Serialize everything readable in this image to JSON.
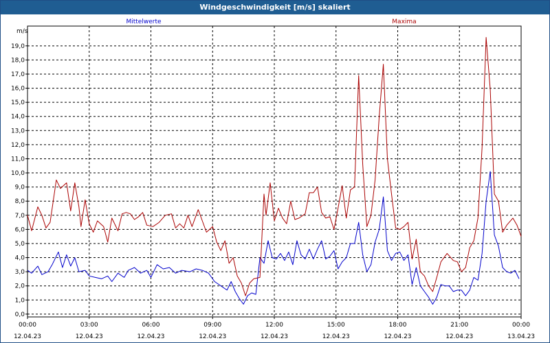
{
  "window": {
    "title": "Windgeschwindigkeit [m/s] skaliert"
  },
  "chart_data": {
    "type": "line",
    "title": "Windgeschwindigkeit [m/s] skaliert",
    "ylabel": "m/s",
    "xlabel": "",
    "ylim": [
      -0.2,
      20.4
    ],
    "xlim": [
      0,
      24
    ],
    "grid": true,
    "colors": {
      "Mittelwerte": "#0000cc",
      "Maxima": "#aa0000"
    },
    "yticks": [
      {
        "v": 0,
        "label": "0,0"
      },
      {
        "v": 1,
        "label": "1,0"
      },
      {
        "v": 2,
        "label": "2,0"
      },
      {
        "v": 3,
        "label": "3,0"
      },
      {
        "v": 4,
        "label": "4,0"
      },
      {
        "v": 5,
        "label": "5,0"
      },
      {
        "v": 6,
        "label": "6,0"
      },
      {
        "v": 7,
        "label": "7,0"
      },
      {
        "v": 8,
        "label": "8,0"
      },
      {
        "v": 9,
        "label": "9,0"
      },
      {
        "v": 10,
        "label": "10,0"
      },
      {
        "v": 11,
        "label": "11,0"
      },
      {
        "v": 12,
        "label": "12,0"
      },
      {
        "v": 13,
        "label": "13,0"
      },
      {
        "v": 14,
        "label": "14,0"
      },
      {
        "v": 15,
        "label": "15,0"
      },
      {
        "v": 16,
        "label": "16,0"
      },
      {
        "v": 17,
        "label": "17,0"
      },
      {
        "v": 18,
        "label": "18,0"
      },
      {
        "v": 19,
        "label": "19,0"
      }
    ],
    "xticks": [
      {
        "v": 0,
        "time": "00:00",
        "date": "12.04.23"
      },
      {
        "v": 3,
        "time": "03:00",
        "date": "12.04.23"
      },
      {
        "v": 6,
        "time": "06:00",
        "date": "12.04.23"
      },
      {
        "v": 9,
        "time": "09:00",
        "date": "12.04.23"
      },
      {
        "v": 12,
        "time": "12:00",
        "date": "12.04.23"
      },
      {
        "v": 15,
        "time": "15:00",
        "date": "12.04.23"
      },
      {
        "v": 18,
        "time": "18:00",
        "date": "12.04.23"
      },
      {
        "v": 21,
        "time": "21:00",
        "date": "12.04.23"
      },
      {
        "v": 24,
        "time": "00:00",
        "date": "13.04.23"
      }
    ],
    "series": [
      {
        "name": "Mittelwerte",
        "points": [
          [
            0.0,
            3.1
          ],
          [
            0.2,
            2.9
          ],
          [
            0.5,
            3.4
          ],
          [
            0.7,
            2.8
          ],
          [
            1.0,
            3.0
          ],
          [
            1.2,
            3.5
          ],
          [
            1.5,
            4.4
          ],
          [
            1.7,
            3.3
          ],
          [
            1.9,
            4.2
          ],
          [
            2.1,
            3.4
          ],
          [
            2.3,
            4.0
          ],
          [
            2.5,
            3.0
          ],
          [
            2.8,
            3.1
          ],
          [
            3.0,
            2.7
          ],
          [
            3.3,
            2.6
          ],
          [
            3.6,
            2.5
          ],
          [
            3.9,
            2.7
          ],
          [
            4.1,
            2.3
          ],
          [
            4.4,
            2.9
          ],
          [
            4.7,
            2.6
          ],
          [
            4.9,
            3.1
          ],
          [
            5.2,
            3.3
          ],
          [
            5.5,
            2.9
          ],
          [
            5.8,
            3.1
          ],
          [
            6.0,
            2.6
          ],
          [
            6.3,
            3.5
          ],
          [
            6.6,
            3.2
          ],
          [
            6.9,
            3.3
          ],
          [
            7.2,
            2.9
          ],
          [
            7.5,
            3.1
          ],
          [
            7.9,
            3.0
          ],
          [
            8.2,
            3.2
          ],
          [
            8.5,
            3.1
          ],
          [
            8.8,
            2.9
          ],
          [
            9.1,
            2.3
          ],
          [
            9.4,
            2.0
          ],
          [
            9.7,
            1.7
          ],
          [
            9.9,
            2.3
          ],
          [
            10.1,
            1.6
          ],
          [
            10.3,
            1.1
          ],
          [
            10.5,
            0.7
          ],
          [
            10.7,
            1.3
          ],
          [
            10.9,
            1.5
          ],
          [
            11.1,
            1.4
          ],
          [
            11.3,
            4.0
          ],
          [
            11.5,
            3.6
          ],
          [
            11.7,
            5.2
          ],
          [
            11.9,
            4.0
          ],
          [
            12.1,
            3.9
          ],
          [
            12.3,
            4.3
          ],
          [
            12.5,
            3.8
          ],
          [
            12.7,
            4.4
          ],
          [
            12.9,
            3.5
          ],
          [
            13.1,
            5.2
          ],
          [
            13.3,
            4.2
          ],
          [
            13.5,
            3.9
          ],
          [
            13.7,
            4.6
          ],
          [
            13.9,
            3.9
          ],
          [
            14.1,
            4.6
          ],
          [
            14.3,
            5.2
          ],
          [
            14.5,
            3.9
          ],
          [
            14.7,
            4.1
          ],
          [
            14.9,
            4.5
          ],
          [
            15.1,
            3.2
          ],
          [
            15.3,
            3.7
          ],
          [
            15.5,
            4.0
          ],
          [
            15.7,
            5.0
          ],
          [
            15.9,
            5.0
          ],
          [
            16.1,
            6.5
          ],
          [
            16.3,
            4.2
          ],
          [
            16.5,
            3.0
          ],
          [
            16.7,
            3.5
          ],
          [
            16.9,
            5.1
          ],
          [
            17.1,
            6.0
          ],
          [
            17.3,
            8.3
          ],
          [
            17.5,
            4.5
          ],
          [
            17.7,
            3.8
          ],
          [
            17.9,
            4.3
          ],
          [
            18.1,
            4.4
          ],
          [
            18.3,
            3.8
          ],
          [
            18.5,
            4.2
          ],
          [
            18.7,
            2.1
          ],
          [
            18.9,
            3.3
          ],
          [
            19.1,
            2.0
          ],
          [
            19.3,
            1.6
          ],
          [
            19.5,
            1.2
          ],
          [
            19.7,
            0.7
          ],
          [
            19.9,
            1.2
          ],
          [
            20.1,
            2.1
          ],
          [
            20.3,
            2.0
          ],
          [
            20.5,
            2.0
          ],
          [
            20.7,
            1.6
          ],
          [
            20.9,
            1.7
          ],
          [
            21.1,
            1.7
          ],
          [
            21.3,
            1.3
          ],
          [
            21.5,
            1.7
          ],
          [
            21.7,
            2.6
          ],
          [
            21.9,
            2.4
          ],
          [
            22.1,
            4.3
          ],
          [
            22.3,
            8.0
          ],
          [
            22.5,
            10.1
          ],
          [
            22.7,
            5.6
          ],
          [
            22.9,
            4.8
          ],
          [
            23.1,
            3.3
          ],
          [
            23.3,
            3.0
          ],
          [
            23.5,
            2.9
          ],
          [
            23.7,
            3.1
          ],
          [
            23.9,
            2.5
          ]
        ]
      },
      {
        "name": "Maxima",
        "points": [
          [
            0.0,
            7.0
          ],
          [
            0.2,
            5.9
          ],
          [
            0.5,
            7.6
          ],
          [
            0.7,
            7.0
          ],
          [
            0.9,
            6.1
          ],
          [
            1.1,
            6.5
          ],
          [
            1.4,
            9.5
          ],
          [
            1.6,
            8.9
          ],
          [
            1.9,
            9.3
          ],
          [
            2.1,
            7.3
          ],
          [
            2.3,
            9.3
          ],
          [
            2.5,
            7.6
          ],
          [
            2.6,
            6.2
          ],
          [
            2.8,
            8.1
          ],
          [
            3.0,
            6.4
          ],
          [
            3.2,
            5.8
          ],
          [
            3.4,
            6.6
          ],
          [
            3.7,
            6.2
          ],
          [
            3.9,
            5.1
          ],
          [
            4.1,
            6.8
          ],
          [
            4.4,
            5.9
          ],
          [
            4.6,
            7.1
          ],
          [
            4.8,
            7.2
          ],
          [
            5.0,
            7.1
          ],
          [
            5.2,
            6.7
          ],
          [
            5.4,
            6.9
          ],
          [
            5.6,
            7.2
          ],
          [
            5.8,
            6.3
          ],
          [
            6.1,
            6.2
          ],
          [
            6.4,
            6.5
          ],
          [
            6.7,
            7.0
          ],
          [
            7.0,
            7.1
          ],
          [
            7.2,
            6.1
          ],
          [
            7.4,
            6.4
          ],
          [
            7.6,
            6.1
          ],
          [
            7.8,
            7.0
          ],
          [
            8.0,
            6.2
          ],
          [
            8.3,
            7.4
          ],
          [
            8.5,
            6.6
          ],
          [
            8.7,
            5.8
          ],
          [
            9.0,
            6.2
          ],
          [
            9.2,
            5.1
          ],
          [
            9.4,
            4.5
          ],
          [
            9.6,
            5.2
          ],
          [
            9.8,
            3.6
          ],
          [
            10.0,
            4.0
          ],
          [
            10.2,
            2.7
          ],
          [
            10.4,
            2.2
          ],
          [
            10.6,
            1.3
          ],
          [
            10.8,
            2.2
          ],
          [
            11.0,
            2.5
          ],
          [
            11.3,
            2.6
          ],
          [
            11.5,
            8.5
          ],
          [
            11.6,
            7.0
          ],
          [
            11.8,
            9.3
          ],
          [
            12.0,
            6.6
          ],
          [
            12.2,
            7.5
          ],
          [
            12.4,
            6.8
          ],
          [
            12.6,
            6.4
          ],
          [
            12.8,
            8.0
          ],
          [
            13.0,
            6.7
          ],
          [
            13.2,
            6.8
          ],
          [
            13.5,
            7.1
          ],
          [
            13.7,
            8.6
          ],
          [
            13.9,
            8.6
          ],
          [
            14.1,
            9.0
          ],
          [
            14.3,
            7.2
          ],
          [
            14.5,
            6.8
          ],
          [
            14.7,
            6.9
          ],
          [
            14.9,
            6.0
          ],
          [
            15.1,
            7.5
          ],
          [
            15.3,
            9.1
          ],
          [
            15.5,
            6.8
          ],
          [
            15.7,
            8.8
          ],
          [
            15.9,
            9.0
          ],
          [
            16.1,
            16.9
          ],
          [
            16.3,
            10.6
          ],
          [
            16.5,
            6.2
          ],
          [
            16.7,
            7.0
          ],
          [
            16.9,
            9.5
          ],
          [
            17.1,
            14.0
          ],
          [
            17.3,
            17.7
          ],
          [
            17.5,
            11.0
          ],
          [
            17.7,
            8.5
          ],
          [
            17.9,
            6.1
          ],
          [
            18.1,
            6.0
          ],
          [
            18.3,
            6.2
          ],
          [
            18.5,
            6.5
          ],
          [
            18.7,
            3.9
          ],
          [
            18.9,
            5.3
          ],
          [
            19.1,
            3.0
          ],
          [
            19.3,
            2.7
          ],
          [
            19.5,
            2.0
          ],
          [
            19.7,
            1.6
          ],
          [
            19.9,
            2.6
          ],
          [
            20.1,
            3.7
          ],
          [
            20.4,
            4.3
          ],
          [
            20.7,
            3.8
          ],
          [
            20.9,
            3.7
          ],
          [
            21.1,
            3.0
          ],
          [
            21.3,
            3.3
          ],
          [
            21.5,
            4.7
          ],
          [
            21.7,
            5.2
          ],
          [
            21.9,
            6.8
          ],
          [
            22.1,
            11.8
          ],
          [
            22.3,
            19.6
          ],
          [
            22.5,
            15.9
          ],
          [
            22.7,
            8.5
          ],
          [
            22.9,
            8.0
          ],
          [
            23.1,
            5.8
          ],
          [
            23.3,
            6.3
          ],
          [
            23.6,
            6.8
          ],
          [
            23.8,
            6.3
          ],
          [
            24.0,
            5.5
          ]
        ]
      }
    ]
  }
}
